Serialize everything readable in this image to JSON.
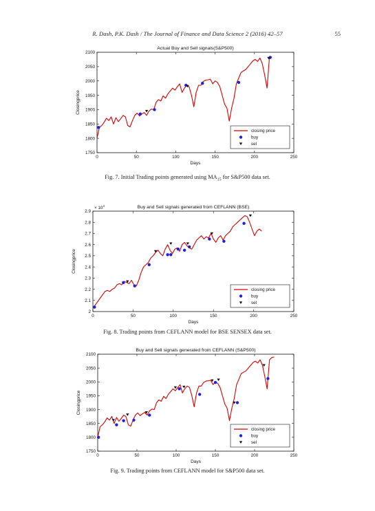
{
  "header": {
    "running_title": "R. Dash, P.K. Dash / The Journal of Finance and Data Science 2 (2016) 42–57",
    "page_number": "55"
  },
  "colors": {
    "price_line": "#d40000",
    "buy_marker": "#1f1fdd",
    "sell_marker": "#111111"
  },
  "figures": [
    {
      "id": "fig7",
      "caption_pre": "Fig. 7.  Initial Trading points generated using MA",
      "caption_sub": "15",
      "caption_post": " for S&P500 data set.",
      "chart_data": {
        "type": "line",
        "title": "Actual Buy and Sell signals(S&P500)",
        "xlabel": "Days",
        "ylabel": "Closingprice",
        "exponent_label": "",
        "xlim": [
          0,
          250
        ],
        "ylim": [
          1750,
          2100
        ],
        "xticks": [
          0,
          50,
          100,
          150,
          200,
          250
        ],
        "yticks": [
          1750,
          1800,
          1850,
          1900,
          1950,
          2000,
          2050,
          2100
        ],
        "legend": {
          "position": "lower-right",
          "entries": [
            "closing price",
            "buy",
            "sel"
          ]
        },
        "series": [
          {
            "name": "closing price",
            "x": [
              0,
              3,
              6,
              9,
              12,
              15,
              18,
              21,
              24,
              27,
              30,
              33,
              36,
              39,
              42,
              45,
              48,
              51,
              54,
              57,
              60,
              63,
              66,
              69,
              72,
              75,
              78,
              81,
              84,
              87,
              90,
              93,
              96,
              99,
              102,
              105,
              108,
              111,
              114,
              117,
              120,
              123,
              126,
              129,
              132,
              135,
              138,
              141,
              144,
              147,
              150,
              153,
              156,
              159,
              162,
              165,
              168,
              171,
              174,
              177,
              180,
              183,
              186,
              189,
              192,
              195,
              198,
              201,
              204,
              207,
              210,
              213,
              216,
              219,
              222
            ],
            "y": [
              1800,
              1838,
              1845,
              1856,
              1870,
              1862,
              1875,
              1850,
              1872,
              1858,
              1868,
              1880,
              1875,
              1845,
              1840,
              1862,
              1880,
              1888,
              1878,
              1885,
              1890,
              1880,
              1895,
              1902,
              1900,
              1925,
              1935,
              1930,
              1948,
              1940,
              1955,
              1965,
              1975,
              1968,
              1980,
              1990,
              1960,
              1975,
              1985,
              1980,
              1950,
              1910,
              1960,
              1985,
              1985,
              1998,
              2003,
              2004,
              2006,
              1990,
              2000,
              1995,
              1980,
              1950,
              1920,
              1905,
              1860,
              1905,
              1940,
              1990,
              2010,
              2030,
              2035,
              2040,
              2050,
              2060,
              2070,
              2075,
              2068,
              2080,
              2060,
              2020,
              1975,
              2080,
              2085
            ]
          }
        ],
        "buy_signals": [
          [
            2,
            1838
          ],
          [
            55,
            1885
          ],
          [
            73,
            1900
          ],
          [
            113,
            1985
          ],
          [
            134,
            1992
          ],
          [
            180,
            1995
          ],
          [
            220,
            2082
          ]
        ],
        "sell_signals": [
          [
            63,
            1895
          ],
          [
            115,
            1982
          ],
          [
            218,
            2080
          ]
        ]
      }
    },
    {
      "id": "fig8",
      "caption_pre": "Fig. 8.  Trading points from CEFLANN model for BSE SENSEX data set.",
      "caption_sub": "",
      "caption_post": "",
      "chart_data": {
        "type": "line",
        "title": "Buy and Sell signals generated from CEFLANN (BSE)",
        "xlabel": "Days",
        "ylabel": "Closingprice",
        "exponent_label": "× 10",
        "exponent_power": "4",
        "xlim": [
          0,
          250
        ],
        "ylim": [
          2,
          2.9
        ],
        "xticks": [
          0,
          50,
          100,
          150,
          200,
          250
        ],
        "yticks": [
          2,
          2.1,
          2.2,
          2.3,
          2.4,
          2.5,
          2.6,
          2.7,
          2.8,
          2.9
        ],
        "legend": {
          "position": "lower-right",
          "entries": [
            "closing price",
            "buy",
            "sel"
          ]
        },
        "series": [
          {
            "name": "closing price",
            "x": [
              0,
              3,
              6,
              9,
              12,
              15,
              18,
              21,
              24,
              27,
              30,
              33,
              36,
              39,
              42,
              45,
              48,
              51,
              54,
              57,
              60,
              63,
              66,
              69,
              72,
              75,
              78,
              81,
              84,
              87,
              90,
              93,
              96,
              99,
              102,
              105,
              108,
              111,
              114,
              117,
              120,
              123,
              126,
              129,
              132,
              135,
              138,
              141,
              144,
              147,
              150,
              153,
              156,
              159,
              162,
              165,
              168,
              171,
              174,
              177,
              180,
              183,
              186,
              189,
              192,
              195,
              198,
              201,
              204,
              207,
              210
            ],
            "y": [
              2.03,
              2.06,
              2.09,
              2.12,
              2.15,
              2.18,
              2.19,
              2.18,
              2.2,
              2.21,
              2.24,
              2.25,
              2.24,
              2.27,
              2.26,
              2.25,
              2.28,
              2.24,
              2.23,
              2.28,
              2.35,
              2.4,
              2.42,
              2.44,
              2.48,
              2.5,
              2.53,
              2.55,
              2.52,
              2.5,
              2.56,
              2.6,
              2.55,
              2.52,
              2.56,
              2.57,
              2.54,
              2.6,
              2.62,
              2.59,
              2.57,
              2.56,
              2.6,
              2.64,
              2.66,
              2.68,
              2.65,
              2.67,
              2.66,
              2.7,
              2.65,
              2.62,
              2.66,
              2.68,
              2.64,
              2.68,
              2.7,
              2.72,
              2.76,
              2.78,
              2.8,
              2.82,
              2.84,
              2.86,
              2.85,
              2.8,
              2.74,
              2.68,
              2.72,
              2.74,
              2.72
            ]
          }
        ],
        "buy_signals": [
          [
            2,
            2.04
          ],
          [
            38,
            2.26
          ],
          [
            52,
            2.23
          ],
          [
            70,
            2.42
          ],
          [
            93,
            2.51
          ],
          [
            97,
            2.51
          ],
          [
            106,
            2.56
          ],
          [
            114,
            2.55
          ],
          [
            120,
            2.58
          ],
          [
            145,
            2.65
          ],
          [
            163,
            2.63
          ],
          [
            188,
            2.79
          ]
        ],
        "sell_signals": [
          [
            43,
            2.27
          ],
          [
            78,
            2.54
          ],
          [
            97,
            2.61
          ],
          [
            118,
            2.61
          ],
          [
            148,
            2.7
          ],
          [
            196,
            2.86
          ]
        ]
      }
    },
    {
      "id": "fig9",
      "caption_pre": "Fig. 9.  Trading points from CEFLANN model for S&P500 data set.",
      "caption_sub": "",
      "caption_post": "",
      "chart_data": {
        "type": "line",
        "title": "Buy and Sell signals generated from CEFLANN (S&P500)",
        "xlabel": "Days",
        "ylabel": "Closingprice",
        "exponent_label": "",
        "xlim": [
          0,
          250
        ],
        "ylim": [
          1750,
          2100
        ],
        "xticks": [
          0,
          50,
          100,
          150,
          200,
          250
        ],
        "yticks": [
          1750,
          1800,
          1850,
          1900,
          1950,
          2000,
          2050,
          2100
        ],
        "legend": {
          "position": "lower-right",
          "entries": [
            "closing price",
            "buy",
            "sel"
          ]
        },
        "series": [
          {
            "name": "closing price",
            "x": [
              0,
              3,
              6,
              9,
              12,
              15,
              18,
              21,
              24,
              27,
              30,
              33,
              36,
              39,
              42,
              45,
              48,
              51,
              54,
              57,
              60,
              63,
              66,
              69,
              72,
              75,
              78,
              81,
              84,
              87,
              90,
              93,
              96,
              99,
              102,
              105,
              108,
              111,
              114,
              117,
              120,
              123,
              126,
              129,
              132,
              135,
              138,
              141,
              144,
              147,
              150,
              153,
              156,
              159,
              162,
              165,
              168,
              171,
              174,
              177,
              180,
              183,
              186,
              189,
              192,
              195,
              198,
              201,
              204,
              207,
              210,
              213,
              216,
              219,
              222,
              225
            ],
            "y": [
              1800,
              1838,
              1845,
              1856,
              1870,
              1862,
              1875,
              1850,
              1872,
              1858,
              1868,
              1880,
              1875,
              1845,
              1840,
              1862,
              1880,
              1888,
              1878,
              1885,
              1890,
              1880,
              1895,
              1902,
              1900,
              1925,
              1935,
              1930,
              1948,
              1940,
              1955,
              1965,
              1975,
              1968,
              1980,
              1990,
              1960,
              1975,
              1985,
              1980,
              1950,
              1910,
              1960,
              1985,
              1985,
              1998,
              2003,
              2004,
              2006,
              1990,
              2000,
              1995,
              1980,
              1950,
              1920,
              1905,
              1860,
              1905,
              1940,
              1990,
              2010,
              2030,
              2035,
              2040,
              2050,
              2060,
              2070,
              2075,
              2068,
              2080,
              2060,
              2020,
              1975,
              2080,
              2088,
              2090
            ]
          }
        ],
        "buy_signals": [
          [
            1,
            1800
          ],
          [
            24,
            1845
          ],
          [
            33,
            1860
          ],
          [
            46,
            1862
          ],
          [
            66,
            1880
          ],
          [
            104,
            1975
          ],
          [
            130,
            1955
          ],
          [
            150,
            1998
          ],
          [
            178,
            1925
          ],
          [
            217,
            2012
          ]
        ],
        "sell_signals": [
          [
            20,
            1862
          ],
          [
            38,
            1882
          ],
          [
            62,
            1890
          ],
          [
            99,
            1980
          ],
          [
            110,
            1982
          ],
          [
            146,
            2005
          ],
          [
            154,
            2008
          ],
          [
            174,
            1925
          ],
          [
            212,
            2060
          ]
        ]
      }
    }
  ]
}
